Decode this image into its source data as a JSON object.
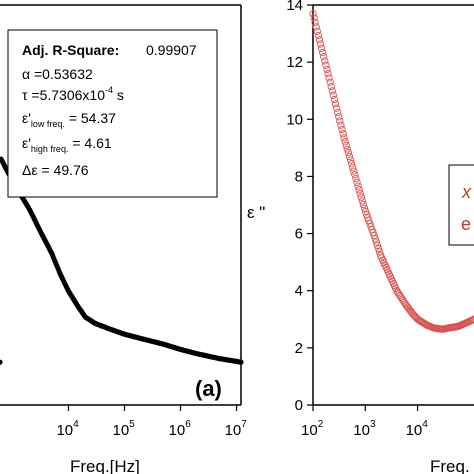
{
  "chart_data": [
    {
      "type": "scatter",
      "panel_label": "(a)",
      "xscale": "log",
      "xlabel": "Freq.[Hz]",
      "xticks": [
        {
          "exp": "4",
          "value": 10000
        },
        {
          "exp": "5",
          "value": 100000
        },
        {
          "exp": "6",
          "value": 1000000
        },
        {
          "exp": "7",
          "value": 10000000
        }
      ],
      "xlim": [
        600,
        12000000
      ],
      "ylim": [
        0,
        100
      ],
      "series": [
        {
          "color": "#000000",
          "points": [
            [
              600,
              62
            ],
            [
              1000,
              56
            ],
            [
              2000,
              49
            ],
            [
              3000,
              44
            ],
            [
              5000,
              38
            ],
            [
              7000,
              33
            ],
            [
              10000,
              28.5
            ],
            [
              15000,
              24.5
            ],
            [
              20000,
              22
            ],
            [
              30000,
              20.4
            ],
            [
              50000,
              19.2
            ],
            [
              100000,
              17.7
            ],
            [
              200000,
              16.6
            ],
            [
              500000,
              15.2
            ],
            [
              1000000,
              13.9
            ],
            [
              2000000,
              12.8
            ],
            [
              5000000,
              11.6
            ],
            [
              10000000,
              10.9
            ],
            [
              12000000,
              10.7
            ]
          ]
        }
      ],
      "fit_box": {
        "title_label": "Adj. R-Square:",
        "title_value": "0.99907",
        "lines": [
          {
            "sym": "α",
            "sub": "",
            "text": " =0.53632"
          },
          {
            "sym": "τ",
            "sub": "",
            "text": " =5.7306x10",
            "sup": "-4",
            "tail": " s"
          },
          {
            "sym": "ε'",
            "sub": "low freq.",
            "text": " = 54.37"
          },
          {
            "sym": "ε'",
            "sub": "high freq.",
            "text": " = 4.61"
          },
          {
            "sym": "Δε",
            "sub": "",
            "text": " = 49.76"
          }
        ]
      }
    },
    {
      "type": "scatter",
      "xscale": "log",
      "xlabel": "Freq.",
      "ylabel": "ε \"",
      "xticks": [
        {
          "exp": "2",
          "value": 100
        },
        {
          "exp": "3",
          "value": 1000
        },
        {
          "exp": "4",
          "value": 10000
        }
      ],
      "yticks": [
        0,
        2,
        4,
        6,
        8,
        10,
        12,
        14
      ],
      "xlim": [
        100,
        120000
      ],
      "ylim": [
        0,
        14
      ],
      "series": [
        {
          "color": "#d9534f",
          "points": [
            [
              100,
              13.7
            ],
            [
              120,
              13.1
            ],
            [
              150,
              12.4
            ],
            [
              200,
              11.5
            ],
            [
              300,
              10.2
            ],
            [
              400,
              9.3
            ],
            [
              600,
              8.2
            ],
            [
              800,
              7.4
            ],
            [
              1000,
              6.8
            ],
            [
              1500,
              5.9
            ],
            [
              2000,
              5.2
            ],
            [
              3000,
              4.5
            ],
            [
              4000,
              4.0
            ],
            [
              6000,
              3.5
            ],
            [
              8000,
              3.2
            ],
            [
              10000,
              3.0
            ],
            [
              15000,
              2.8
            ],
            [
              20000,
              2.7
            ],
            [
              30000,
              2.65
            ],
            [
              40000,
              2.7
            ],
            [
              60000,
              2.75
            ],
            [
              80000,
              2.85
            ],
            [
              120000,
              3.0
            ]
          ]
        }
      ],
      "legend_partial": [
        "x",
        "e"
      ]
    }
  ]
}
